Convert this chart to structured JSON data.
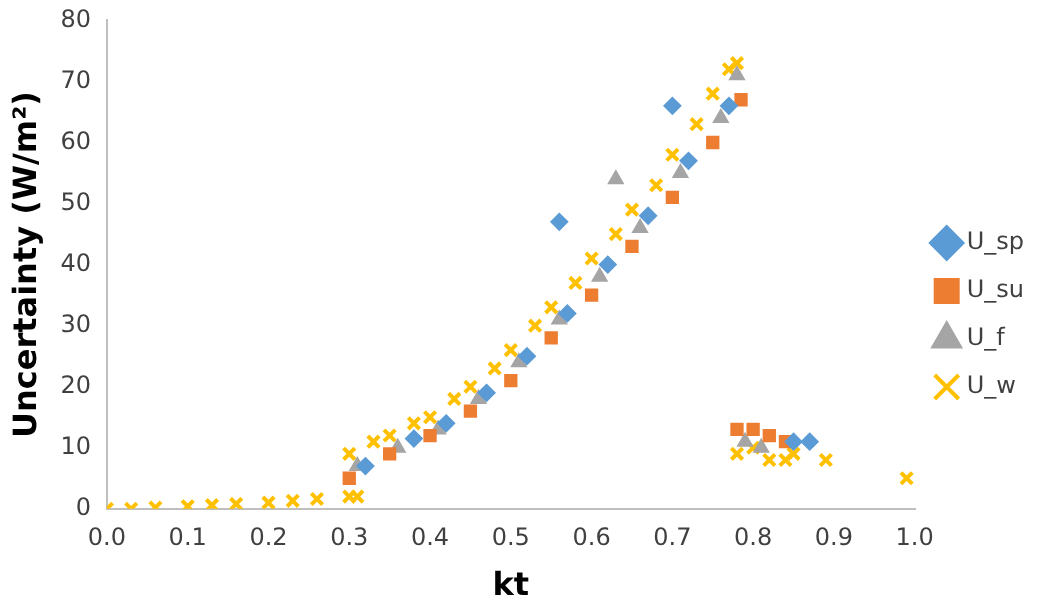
{
  "chart_data": {
    "type": "scatter",
    "xlabel": "kt",
    "ylabel": "Uncertainty (W/m²)",
    "xlim": [
      0,
      1
    ],
    "ylim": [
      0,
      80
    ],
    "xticks": [
      {
        "value": 0,
        "label": "0.0"
      },
      {
        "value": 0.1,
        "label": "0.1"
      },
      {
        "value": 0.2,
        "label": "0.2"
      },
      {
        "value": 0.3,
        "label": "0.3"
      },
      {
        "value": 0.4,
        "label": "0.4"
      },
      {
        "value": 0.5,
        "label": "0.5"
      },
      {
        "value": 0.6,
        "label": "0.6"
      },
      {
        "value": 0.7,
        "label": "0.7"
      },
      {
        "value": 0.8,
        "label": "0.8"
      },
      {
        "value": 0.9,
        "label": "0.9"
      },
      {
        "value": 1,
        "label": "1.0"
      }
    ],
    "yticks": [
      0,
      10,
      20,
      30,
      40,
      50,
      60,
      70,
      80
    ],
    "grid": false,
    "legend": "right",
    "series": [
      {
        "name": "U_sp",
        "color": "#5b9bd5",
        "marker": "diamond",
        "x": [
          0.32,
          0.38,
          0.42,
          0.47,
          0.52,
          0.57,
          0.62,
          0.67,
          0.72,
          0.77,
          0.56,
          0.7,
          0.85,
          0.87
        ],
        "values": [
          7,
          11.5,
          14,
          19,
          25,
          32,
          40,
          48,
          57,
          66,
          47,
          66,
          11,
          11
        ]
      },
      {
        "name": "U_su",
        "color": "#ed7d31",
        "marker": "square",
        "x": [
          0.3,
          0.35,
          0.4,
          0.45,
          0.5,
          0.55,
          0.6,
          0.65,
          0.7,
          0.75,
          0.785,
          0.78,
          0.8,
          0.82,
          0.84
        ],
        "values": [
          5,
          9,
          12,
          16,
          21,
          28,
          35,
          43,
          51,
          60,
          67,
          13,
          13,
          12,
          11
        ]
      },
      {
        "name": "U_f",
        "color": "#a5a5a5",
        "marker": "triangle",
        "x": [
          0.31,
          0.36,
          0.41,
          0.46,
          0.51,
          0.56,
          0.61,
          0.66,
          0.71,
          0.76,
          0.78,
          0.63,
          0.79,
          0.81
        ],
        "values": [
          7,
          10,
          13,
          18,
          24,
          31,
          38,
          46,
          55,
          64,
          71,
          54,
          11,
          10
        ]
      },
      {
        "name": "U_w",
        "color": "#ffc000",
        "marker": "cross",
        "x": [
          0.0,
          0.03,
          0.06,
          0.1,
          0.13,
          0.16,
          0.2,
          0.23,
          0.26,
          0.3,
          0.31,
          0.3,
          0.33,
          0.35,
          0.38,
          0.4,
          0.43,
          0.45,
          0.48,
          0.5,
          0.53,
          0.55,
          0.58,
          0.6,
          0.63,
          0.65,
          0.68,
          0.7,
          0.73,
          0.75,
          0.77,
          0.78,
          0.78,
          0.8,
          0.82,
          0.84,
          0.85,
          0.89,
          0.99
        ],
        "values": [
          0,
          0,
          0.2,
          0.4,
          0.6,
          0.8,
          1,
          1.3,
          1.6,
          2,
          2,
          9,
          11,
          12,
          14,
          15,
          18,
          20,
          23,
          26,
          30,
          33,
          37,
          41,
          45,
          49,
          53,
          58,
          63,
          68,
          72,
          73,
          9,
          10,
          8,
          8,
          9,
          8,
          5
        ]
      }
    ]
  }
}
